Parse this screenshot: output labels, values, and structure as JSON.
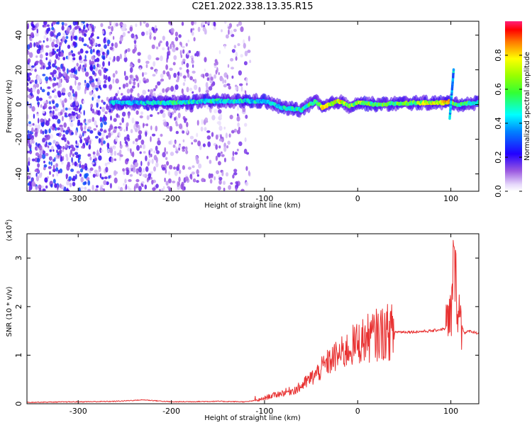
{
  "title": "C2E1.2022.338.13.35.R15",
  "colors": {
    "snr_line": "#e83030",
    "cmap": [
      "#ffffff",
      "#d9c7f7",
      "#8a2be2",
      "#3300ee",
      "#0000ff",
      "#00bfff",
      "#00ff99",
      "#55ff00",
      "#ffff00",
      "#ff8800",
      "#ff0000",
      "#ff1f7a"
    ]
  },
  "chart_data": [
    {
      "type": "heatmap",
      "name": "spectrogram",
      "xlabel": "Height of straight line (km)",
      "ylabel": "Frequency (Hz)",
      "xlim": [
        -355,
        130
      ],
      "ylim": [
        -50,
        48
      ],
      "xticks": [
        -300,
        -200,
        -100,
        0,
        100
      ],
      "yticks": [
        -40,
        -20,
        0,
        20,
        40
      ],
      "colorbar": {
        "label": "Normalized spectral amplitude",
        "range": [
          0.0,
          1.0
        ],
        "ticks": [
          "0.0",
          "0.2",
          "0.4",
          "0.6",
          "0.8"
        ]
      },
      "signal_track": {
        "x": [
          -265,
          -240,
          -200,
          -160,
          -120,
          -100,
          -80,
          -60,
          -45,
          -38,
          -30,
          -20,
          -10,
          0,
          20,
          60,
          95,
          100,
          105,
          130
        ],
        "freq": [
          1,
          1,
          1,
          2,
          2,
          2,
          -2,
          -3,
          2,
          -2,
          0,
          2,
          -1,
          1,
          0,
          1,
          1,
          2,
          0,
          1
        ],
        "amplitude": [
          0.5,
          0.45,
          0.55,
          0.5,
          0.5,
          0.45,
          0.5,
          0.55,
          0.6,
          0.75,
          0.7,
          0.8,
          0.65,
          0.7,
          0.6,
          0.65,
          0.85,
          0.95,
          0.6,
          0.55
        ]
      }
    },
    {
      "type": "line",
      "name": "snr",
      "xlabel": "Height of straight line (km)",
      "ylabel": "SNR (10 * v/v)",
      "y_multiplier": "(x10",
      "y_multiplier_exp": "4",
      "xlim": [
        -355,
        130
      ],
      "ylim": [
        0,
        3.5
      ],
      "xticks": [
        -300,
        -200,
        -100,
        0,
        100
      ],
      "yticks": [
        0,
        1,
        2,
        3
      ],
      "series": [
        {
          "name": "SNR",
          "x": [
            -355,
            -300,
            -260,
            -230,
            -200,
            -150,
            -120,
            -105,
            -95,
            -85,
            -75,
            -65,
            -55,
            -45,
            -35,
            -25,
            -15,
            -5,
            5,
            15,
            25,
            35,
            45,
            60,
            80,
            95,
            100,
            103,
            106,
            110,
            115,
            120,
            130
          ],
          "y": [
            0.03,
            0.04,
            0.05,
            0.08,
            0.04,
            0.05,
            0.04,
            0.08,
            0.15,
            0.2,
            0.25,
            0.3,
            0.45,
            0.6,
            0.8,
            0.95,
            1.05,
            1.2,
            1.3,
            1.38,
            1.45,
            1.48,
            1.48,
            1.48,
            1.5,
            1.55,
            1.7,
            3.0,
            2.4,
            1.7,
            1.45,
            1.5,
            1.45
          ]
        }
      ]
    }
  ]
}
